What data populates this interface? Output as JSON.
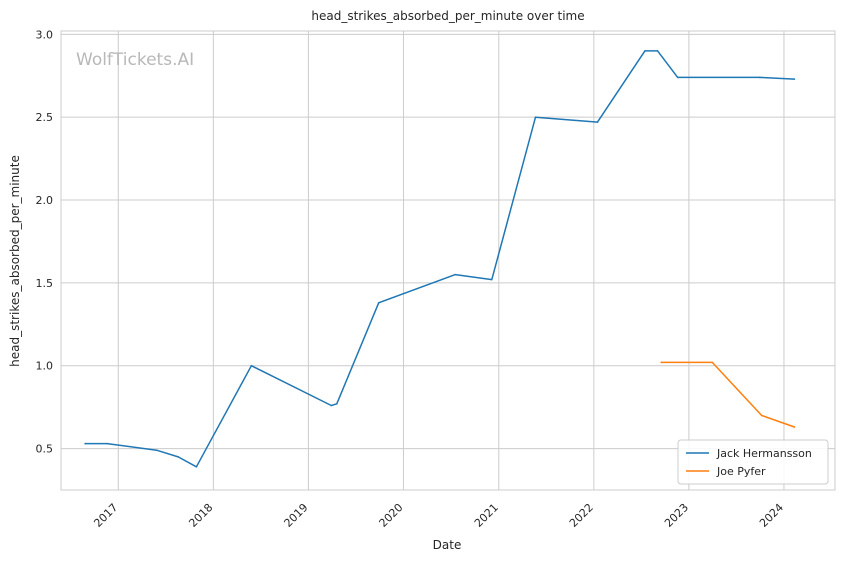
{
  "chart_data": {
    "type": "line",
    "title": "head_strikes_absorbed_per_minute over time",
    "xlabel": "Date",
    "ylabel": "head_strikes_absorbed_per_minute",
    "watermark": "WolfTickets.AI",
    "x_ticks": [
      "2017",
      "2018",
      "2019",
      "2020",
      "2021",
      "2022",
      "2023",
      "2024"
    ],
    "y_ticks": [
      "0.5",
      "1.0",
      "1.5",
      "2.0",
      "2.5",
      "3.0"
    ],
    "xlim": [
      "2016-05-26",
      "2024-07-15"
    ],
    "ylim": [
      0.25,
      3.02
    ],
    "grid": true,
    "legend_position": "bottom-right",
    "series": [
      {
        "name": "Jack Hermansson",
        "color": "#1f77b4",
        "points": [
          [
            "2016-08-27",
            0.53
          ],
          [
            "2016-11-19",
            0.53
          ],
          [
            "2017-05-28",
            0.49
          ],
          [
            "2017-08-19",
            0.45
          ],
          [
            "2017-10-28",
            0.39
          ],
          [
            "2018-05-27",
            1.0
          ],
          [
            "2019-03-30",
            0.76
          ],
          [
            "2019-04-20",
            0.77
          ],
          [
            "2019-09-28",
            1.38
          ],
          [
            "2020-07-18",
            1.55
          ],
          [
            "2020-12-05",
            1.52
          ],
          [
            "2021-05-22",
            2.5
          ],
          [
            "2022-01-15",
            2.47
          ],
          [
            "2022-07-16",
            2.9
          ],
          [
            "2022-09-03",
            2.9
          ],
          [
            "2022-11-19",
            2.74
          ],
          [
            "2023-09-30",
            2.74
          ],
          [
            "2024-02-10",
            2.73
          ]
        ]
      },
      {
        "name": "Joe Pyfer",
        "color": "#ff7f0e",
        "points": [
          [
            "2022-09-17",
            1.02
          ],
          [
            "2023-04-01",
            1.02
          ],
          [
            "2023-10-07",
            0.7
          ],
          [
            "2024-02-10",
            0.63
          ]
        ]
      }
    ]
  }
}
